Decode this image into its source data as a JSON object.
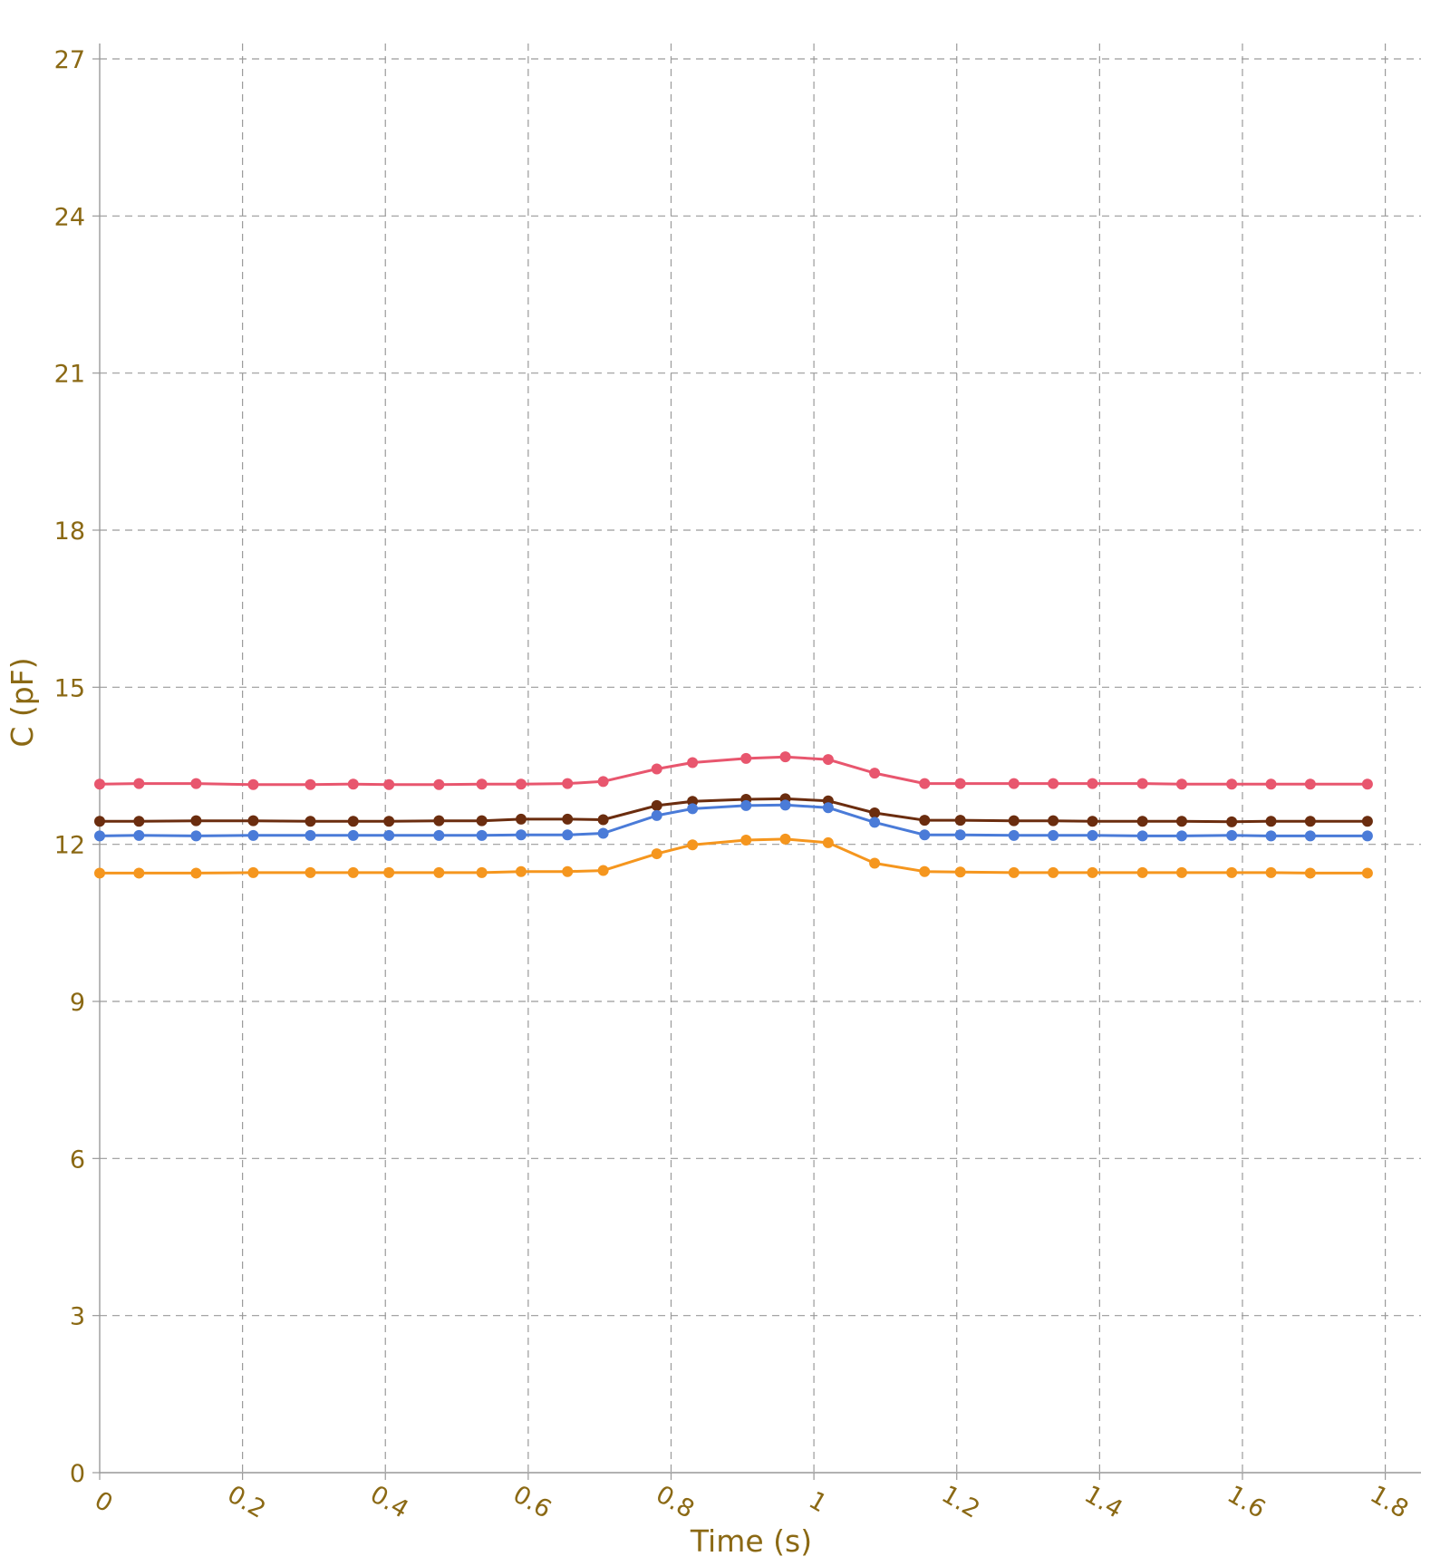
{
  "colors": {
    "text": "#8B6914",
    "grid": "#9a9a9a",
    "axis": "#999999",
    "background": "#ffffff"
  },
  "chart_data": {
    "type": "line",
    "title": "",
    "xlabel": "Time (s)",
    "ylabel": "C (pF)",
    "xlim": [
      0,
      1.85
    ],
    "ylim": [
      0,
      27
    ],
    "xticks": [
      "0",
      "0.2",
      "0.4",
      "0.6",
      "0.8",
      "1",
      "1.2",
      "1.4",
      "1.6",
      "1.8"
    ],
    "xtick_values": [
      0,
      0.2,
      0.4,
      0.6,
      0.8,
      1.0,
      1.2,
      1.4,
      1.6,
      1.8
    ],
    "yticks": [
      "0",
      "3",
      "6",
      "9",
      "12",
      "15",
      "18",
      "21",
      "24",
      "27"
    ],
    "ytick_values": [
      0,
      3,
      6,
      9,
      12,
      15,
      18,
      21,
      24,
      27
    ],
    "grid": true,
    "legend": "none",
    "x": [
      0,
      0.055,
      0.135,
      0.215,
      0.295,
      0.355,
      0.405,
      0.475,
      0.535,
      0.59,
      0.655,
      0.705,
      0.78,
      0.83,
      0.905,
      0.96,
      1.02,
      1.085,
      1.155,
      1.205,
      1.28,
      1.335,
      1.39,
      1.46,
      1.515,
      1.585,
      1.64,
      1.695,
      1.775
    ],
    "series": [
      {
        "color": "#e8566e",
        "values": [
          13.15,
          13.16,
          13.16,
          13.14,
          13.14,
          13.15,
          13.14,
          13.14,
          13.15,
          13.15,
          13.16,
          13.2,
          13.44,
          13.56,
          13.64,
          13.67,
          13.62,
          13.36,
          13.16,
          13.16,
          13.16,
          13.16,
          13.16,
          13.16,
          13.15,
          13.15,
          13.15,
          13.15,
          13.15
        ]
      },
      {
        "color": "#6b2d0f",
        "values": [
          12.44,
          12.44,
          12.45,
          12.45,
          12.44,
          12.44,
          12.44,
          12.45,
          12.45,
          12.48,
          12.48,
          12.47,
          12.74,
          12.82,
          12.86,
          12.87,
          12.83,
          12.6,
          12.46,
          12.46,
          12.45,
          12.45,
          12.44,
          12.44,
          12.44,
          12.43,
          12.44,
          12.44,
          12.44
        ]
      },
      {
        "color": "#4a7bd8",
        "values": [
          12.16,
          12.17,
          12.16,
          12.17,
          12.17,
          12.17,
          12.17,
          12.17,
          12.17,
          12.18,
          12.18,
          12.21,
          12.55,
          12.68,
          12.74,
          12.75,
          12.7,
          12.42,
          12.18,
          12.18,
          12.17,
          12.17,
          12.17,
          12.16,
          12.16,
          12.17,
          12.16,
          12.16,
          12.16
        ]
      },
      {
        "color": "#f5961e",
        "values": [
          11.45,
          11.45,
          11.45,
          11.46,
          11.46,
          11.46,
          11.46,
          11.46,
          11.46,
          11.48,
          11.48,
          11.5,
          11.82,
          11.99,
          12.08,
          12.1,
          12.03,
          11.64,
          11.48,
          11.47,
          11.46,
          11.46,
          11.46,
          11.46,
          11.46,
          11.46,
          11.46,
          11.45,
          11.45
        ]
      }
    ]
  }
}
